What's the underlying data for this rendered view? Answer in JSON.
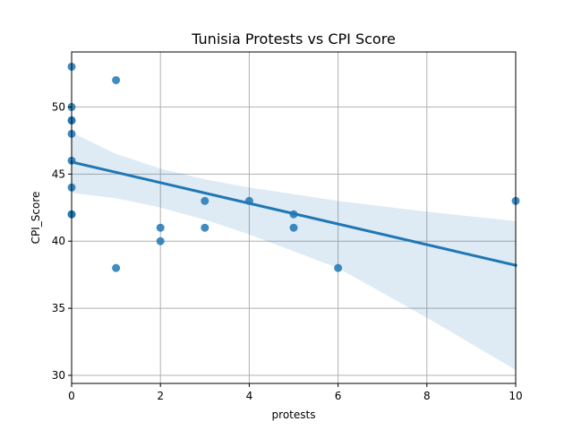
{
  "chart_data": {
    "type": "scatter",
    "title": "Tunisia Protests vs CPI Score",
    "xlabel": "protests",
    "ylabel": "CPI_Score",
    "xlim": [
      0,
      10
    ],
    "ylim": [
      29.4,
      54.1
    ],
    "xticks": [
      0,
      2,
      4,
      6,
      8,
      10
    ],
    "yticks": [
      30,
      35,
      40,
      45,
      50
    ],
    "grid": true,
    "points": [
      {
        "x": 0,
        "y": 53
      },
      {
        "x": 0,
        "y": 50
      },
      {
        "x": 0,
        "y": 49
      },
      {
        "x": 0,
        "y": 49
      },
      {
        "x": 0,
        "y": 48
      },
      {
        "x": 0,
        "y": 46
      },
      {
        "x": 0,
        "y": 44
      },
      {
        "x": 0,
        "y": 42
      },
      {
        "x": 0,
        "y": 42
      },
      {
        "x": 1,
        "y": 52
      },
      {
        "x": 1,
        "y": 38
      },
      {
        "x": 2,
        "y": 41
      },
      {
        "x": 2,
        "y": 40
      },
      {
        "x": 3,
        "y": 43
      },
      {
        "x": 3,
        "y": 41
      },
      {
        "x": 4,
        "y": 43
      },
      {
        "x": 5,
        "y": 42
      },
      {
        "x": 5,
        "y": 41
      },
      {
        "x": 6,
        "y": 38
      },
      {
        "x": 10,
        "y": 43
      }
    ],
    "regression": {
      "line": [
        {
          "x": 0,
          "y": 45.9
        },
        {
          "x": 10,
          "y": 38.2
        }
      ],
      "ci_upper": [
        {
          "x": 0,
          "y": 48.1
        },
        {
          "x": 1,
          "y": 46.5
        },
        {
          "x": 2,
          "y": 45.4
        },
        {
          "x": 3,
          "y": 44.6
        },
        {
          "x": 4,
          "y": 44.0
        },
        {
          "x": 6,
          "y": 43.0
        },
        {
          "x": 8,
          "y": 42.2
        },
        {
          "x": 10,
          "y": 41.5
        }
      ],
      "ci_lower": [
        {
          "x": 0,
          "y": 43.6
        },
        {
          "x": 1,
          "y": 43.2
        },
        {
          "x": 2,
          "y": 42.5
        },
        {
          "x": 3,
          "y": 41.6
        },
        {
          "x": 4,
          "y": 40.5
        },
        {
          "x": 6,
          "y": 38.0
        },
        {
          "x": 8,
          "y": 34.3
        },
        {
          "x": 10,
          "y": 30.4
        }
      ]
    },
    "colors": {
      "point": "#1f77b4",
      "line": "#1f77b4",
      "band": "#1f77b4"
    }
  }
}
